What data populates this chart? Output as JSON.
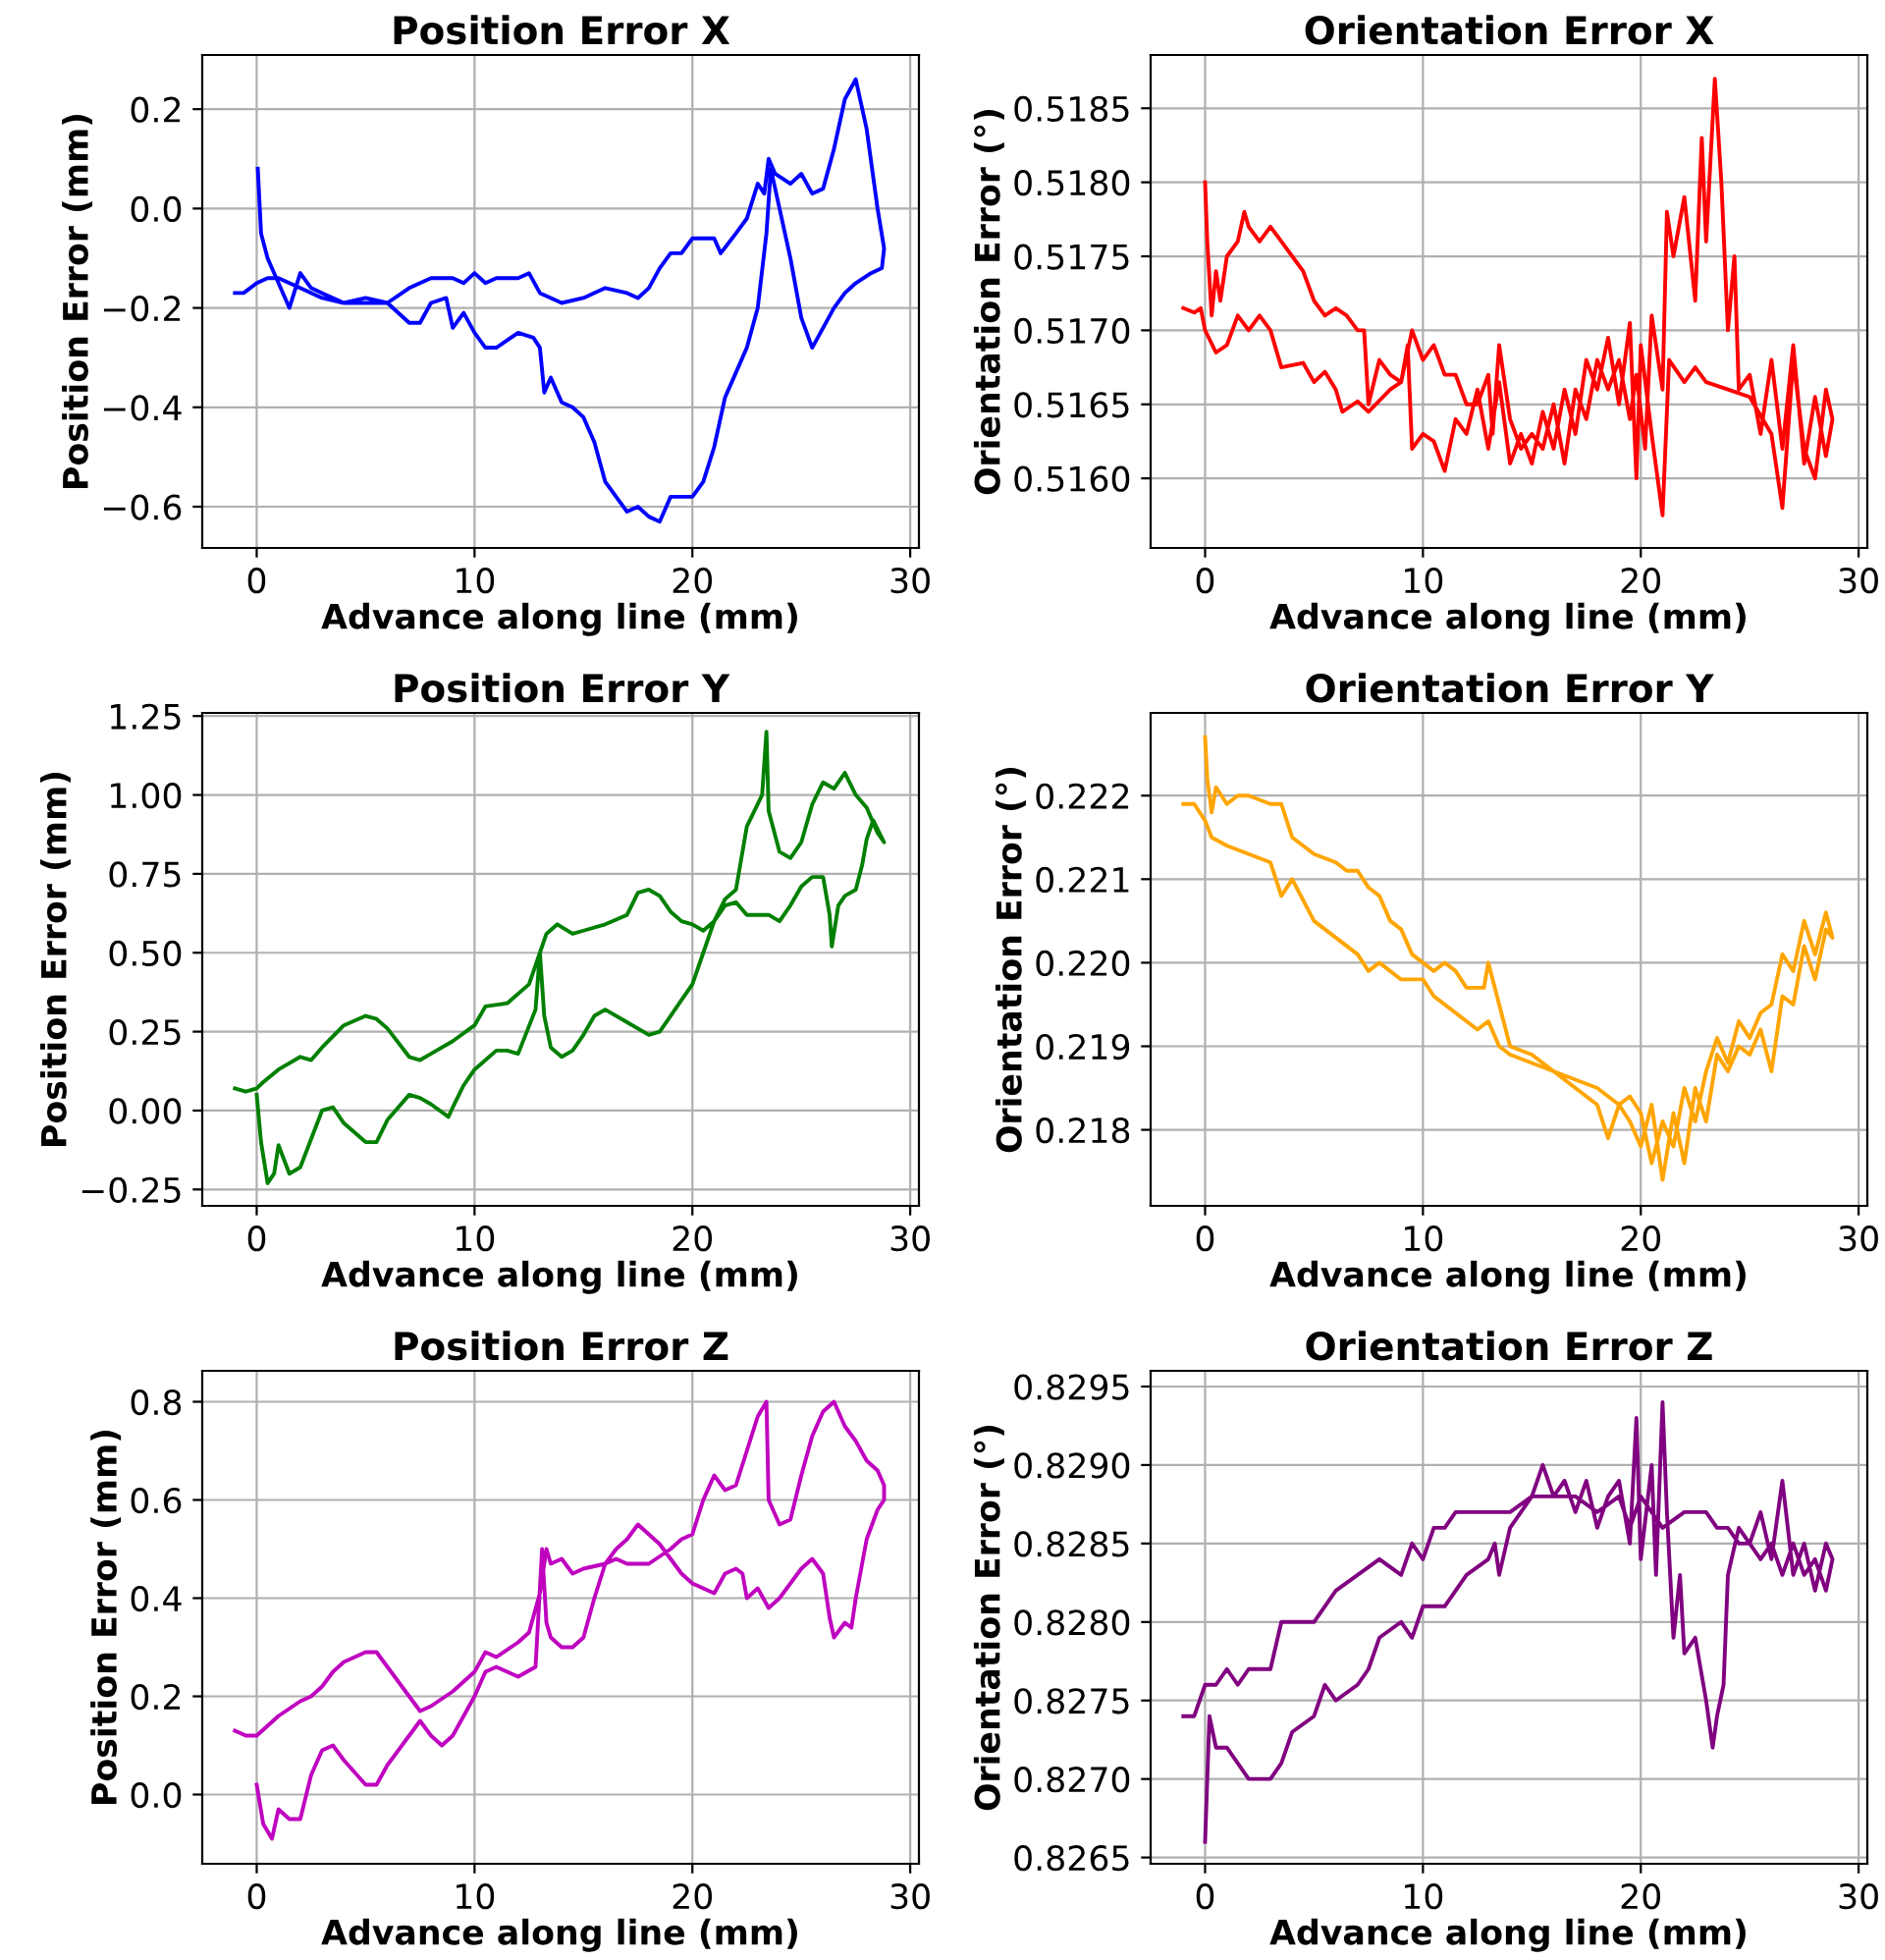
{
  "chart_data": [
    {
      "type": "line",
      "title": "Position Error X",
      "xlabel": "Advance along line (mm)",
      "ylabel": "Position Error (mm)",
      "xlim": [
        -2.5,
        30.4
      ],
      "xticks": [
        0,
        10,
        20,
        30
      ],
      "ylim": [
        -0.683,
        0.309
      ],
      "yticks": [
        {
          "value": -0.6,
          "label": "−0.6"
        },
        {
          "value": -0.4,
          "label": "−0.4"
        },
        {
          "value": -0.2,
          "label": "−0.2"
        },
        {
          "value": 0.0,
          "label": "0.0"
        },
        {
          "value": 0.2,
          "label": "0.2"
        }
      ],
      "grid": true,
      "line_style": "solid",
      "marker": "none",
      "series": [
        {
          "color": "#0000ff",
          "x": [
            -1,
            -0.6,
            0,
            0.5,
            1,
            2,
            3,
            4,
            5,
            6,
            7,
            8,
            9,
            9.5,
            10,
            10.5,
            11,
            12,
            12.5,
            13,
            13.5,
            14,
            15,
            16,
            17,
            17.5,
            18,
            18.5,
            19,
            19.5,
            20,
            21,
            21.3,
            22,
            22.5,
            23,
            23.3,
            23.5,
            23.8,
            24.5,
            25,
            25.5,
            26,
            26.5,
            27,
            27.5,
            28,
            28.5,
            28.8,
            28.7,
            28.2,
            27.5,
            27,
            26.5,
            26,
            25.5,
            25,
            24.5,
            24,
            23.6,
            23.4,
            23,
            22.5,
            22,
            21.5,
            21,
            20.5,
            20,
            19,
            18.5,
            18,
            17.5,
            17,
            16.5,
            16,
            15.5,
            15,
            14.5,
            14,
            13.5,
            13.2,
            13,
            12.7,
            12,
            11,
            10.5,
            10,
            9.5,
            9,
            8.7,
            8,
            7.5,
            7,
            6,
            5,
            4,
            3,
            2.5,
            2,
            1.5,
            1,
            0.5,
            0.2,
            0.05
          ],
          "values": [
            -0.17,
            -0.17,
            -0.15,
            -0.14,
            -0.14,
            -0.16,
            -0.18,
            -0.19,
            -0.19,
            -0.19,
            -0.16,
            -0.14,
            -0.14,
            -0.15,
            -0.13,
            -0.15,
            -0.14,
            -0.14,
            -0.13,
            -0.17,
            -0.18,
            -0.19,
            -0.18,
            -0.16,
            -0.17,
            -0.18,
            -0.16,
            -0.12,
            -0.09,
            -0.09,
            -0.06,
            -0.06,
            -0.09,
            -0.05,
            -0.02,
            0.05,
            0.03,
            0.1,
            0.07,
            0.05,
            0.07,
            0.03,
            0.04,
            0.12,
            0.22,
            0.26,
            0.16,
            0.0,
            -0.08,
            -0.12,
            -0.13,
            -0.15,
            -0.17,
            -0.2,
            -0.24,
            -0.28,
            -0.22,
            -0.1,
            0.0,
            0.08,
            -0.05,
            -0.2,
            -0.28,
            -0.33,
            -0.38,
            -0.48,
            -0.55,
            -0.58,
            -0.58,
            -0.63,
            -0.62,
            -0.6,
            -0.61,
            -0.58,
            -0.55,
            -0.47,
            -0.42,
            -0.4,
            -0.39,
            -0.34,
            -0.37,
            -0.28,
            -0.26,
            -0.25,
            -0.28,
            -0.28,
            -0.25,
            -0.21,
            -0.24,
            -0.18,
            -0.19,
            -0.23,
            -0.23,
            -0.19,
            -0.18,
            -0.19,
            -0.17,
            -0.16,
            -0.13,
            -0.2,
            -0.15,
            -0.1,
            -0.05,
            0.08
          ]
        }
      ]
    },
    {
      "type": "line",
      "title": "Orientation Error X",
      "xlabel": "Advance along line (mm)",
      "ylabel": "Orientation Error (°)",
      "xlim": [
        -2.5,
        30.4
      ],
      "xticks": [
        0,
        10,
        20,
        30
      ],
      "ylim": [
        0.51553,
        0.51886
      ],
      "yticks": [
        {
          "value": 0.516,
          "label": "0.5160"
        },
        {
          "value": 0.5165,
          "label": "0.5165"
        },
        {
          "value": 0.517,
          "label": "0.5170"
        },
        {
          "value": 0.5175,
          "label": "0.5175"
        },
        {
          "value": 0.518,
          "label": "0.5180"
        },
        {
          "value": 0.5185,
          "label": "0.5185"
        }
      ],
      "grid": true,
      "line_style": "solid",
      "marker": "none",
      "series": [
        {
          "color": "#ff0000",
          "x": [
            -1,
            -0.5,
            -0.2,
            0,
            0.5,
            1,
            1.5,
            2,
            2.5,
            3,
            3.5,
            4.5,
            5,
            5.5,
            6,
            6.3,
            7,
            7.5,
            8.5,
            9,
            9.3,
            9.5,
            10,
            10.5,
            11,
            11.5,
            12,
            12.5,
            13,
            13.5,
            14,
            14.5,
            15,
            15.5,
            16,
            16.5,
            17,
            17.5,
            18,
            18.5,
            19,
            19.5,
            19.8,
            20,
            20.5,
            21,
            21.3,
            22,
            22.5,
            23,
            24,
            25,
            26,
            26.5,
            27,
            27.5,
            28,
            28.5,
            28.8,
            28.5,
            28,
            27.5,
            27,
            26.5,
            26,
            25.5,
            25,
            24.5,
            24.3,
            24,
            23.7,
            23.4,
            23,
            22.8,
            22.5,
            22,
            21.5,
            21.2,
            21,
            20.5,
            20.2,
            19.8,
            19.5,
            19,
            18.5,
            18,
            17.5,
            17,
            16.5,
            16,
            15.5,
            15,
            14.5,
            14,
            13.5,
            13.2,
            13,
            12.5,
            12,
            11.5,
            11,
            10.5,
            10,
            9.5,
            9,
            8.5,
            8,
            7.5,
            7.3,
            7,
            6.5,
            6,
            5.5,
            5,
            4.5,
            4,
            3.5,
            3,
            2.5,
            2,
            1.8,
            1.5,
            1,
            0.7,
            0.5,
            0.3,
            0.1,
            0
          ],
          "values": [
            0.51715,
            0.51712,
            0.51715,
            0.517,
            0.51685,
            0.5169,
            0.5171,
            0.517,
            0.5171,
            0.517,
            0.51675,
            0.51678,
            0.51665,
            0.51672,
            0.5166,
            0.51645,
            0.51652,
            0.51645,
            0.5166,
            0.51665,
            0.5169,
            0.5162,
            0.5163,
            0.51625,
            0.51605,
            0.5164,
            0.5163,
            0.5166,
            0.5162,
            0.51665,
            0.5161,
            0.5163,
            0.5161,
            0.51645,
            0.5162,
            0.5166,
            0.5163,
            0.5168,
            0.5166,
            0.51695,
            0.5165,
            0.51705,
            0.516,
            0.5169,
            0.5163,
            0.51575,
            0.5168,
            0.51665,
            0.51675,
            0.51665,
            0.5166,
            0.51655,
            0.5163,
            0.5158,
            0.5168,
            0.5162,
            0.516,
            0.5166,
            0.5164,
            0.51615,
            0.51655,
            0.5161,
            0.5169,
            0.5162,
            0.5168,
            0.5163,
            0.5167,
            0.5166,
            0.5175,
            0.517,
            0.518,
            0.5187,
            0.5176,
            0.5183,
            0.5172,
            0.5179,
            0.5175,
            0.5178,
            0.5166,
            0.5171,
            0.5162,
            0.5167,
            0.5164,
            0.5168,
            0.5166,
            0.5168,
            0.5164,
            0.5166,
            0.5161,
            0.5165,
            0.5162,
            0.5163,
            0.5162,
            0.5164,
            0.5169,
            0.5163,
            0.5167,
            0.5165,
            0.5165,
            0.5167,
            0.5167,
            0.5169,
            0.5168,
            0.517,
            0.51665,
            0.5167,
            0.5168,
            0.5165,
            0.517,
            0.517,
            0.5171,
            0.51715,
            0.5171,
            0.5172,
            0.5174,
            0.5175,
            0.5176,
            0.5177,
            0.5176,
            0.5177,
            0.5178,
            0.5176,
            0.5175,
            0.5172,
            0.5174,
            0.5171,
            0.5176,
            0.518
          ]
        }
      ]
    },
    {
      "type": "line",
      "title": "Position Error Y",
      "xlabel": "Advance along line (mm)",
      "ylabel": "Position Error (mm)",
      "xlim": [
        -2.5,
        30.4
      ],
      "xticks": [
        0,
        10,
        20,
        30
      ],
      "ylim": [
        -0.302,
        1.26
      ],
      "yticks": [
        {
          "value": -0.25,
          "label": "−0.25"
        },
        {
          "value": 0.0,
          "label": "0.00"
        },
        {
          "value": 0.25,
          "label": "0.25"
        },
        {
          "value": 0.5,
          "label": "0.50"
        },
        {
          "value": 0.75,
          "label": "0.75"
        },
        {
          "value": 1.0,
          "label": "1.00"
        },
        {
          "value": 1.25,
          "label": "1.25"
        }
      ],
      "grid": true,
      "line_style": "solid",
      "marker": "none",
      "series": [
        {
          "color": "#008000",
          "x": [
            -1,
            -0.5,
            0,
            0.3,
            1,
            2,
            2.5,
            3,
            4,
            5,
            5.5,
            6,
            7,
            7.5,
            8,
            9,
            10,
            10.5,
            11.5,
            12.5,
            13,
            13.3,
            13.8,
            14.5,
            15,
            16,
            17,
            17.5,
            18,
            18.5,
            19,
            19.5,
            20,
            20.5,
            21,
            21.5,
            22,
            22.5,
            23,
            23.5,
            24,
            24.5,
            25,
            25.5,
            26,
            26.3,
            26.4,
            26.7,
            27,
            27.5,
            27.8,
            28,
            28.3,
            28.8,
            28.5,
            28,
            27.5,
            27,
            26.5,
            26,
            25.5,
            25,
            24.5,
            24,
            23.5,
            23.4,
            23.2,
            22.5,
            22,
            21.5,
            21,
            20.5,
            20,
            19.5,
            19,
            18.5,
            18,
            17,
            16,
            15.5,
            15,
            14.5,
            14,
            13.5,
            13.2,
            13,
            12.8,
            12,
            11.5,
            11,
            10,
            9.5,
            9,
            8.8,
            8,
            7.5,
            7,
            6,
            5.5,
            5,
            4,
            3.5,
            3,
            2,
            1.5,
            1,
            0.8,
            0.5,
            0.2,
            0
          ],
          "values": [
            0.07,
            0.06,
            0.07,
            0.09,
            0.13,
            0.17,
            0.16,
            0.2,
            0.27,
            0.3,
            0.29,
            0.26,
            0.17,
            0.16,
            0.18,
            0.22,
            0.27,
            0.33,
            0.34,
            0.4,
            0.5,
            0.56,
            0.59,
            0.56,
            0.57,
            0.59,
            0.62,
            0.69,
            0.7,
            0.68,
            0.63,
            0.6,
            0.59,
            0.57,
            0.6,
            0.65,
            0.66,
            0.62,
            0.62,
            0.62,
            0.6,
            0.65,
            0.71,
            0.74,
            0.74,
            0.62,
            0.52,
            0.65,
            0.68,
            0.7,
            0.78,
            0.86,
            0.92,
            0.85,
            0.88,
            0.96,
            1.0,
            1.07,
            1.02,
            1.04,
            0.97,
            0.85,
            0.8,
            0.82,
            0.95,
            1.2,
            1.0,
            0.9,
            0.7,
            0.67,
            0.6,
            0.5,
            0.4,
            0.35,
            0.3,
            0.25,
            0.24,
            0.28,
            0.32,
            0.3,
            0.24,
            0.19,
            0.17,
            0.2,
            0.3,
            0.5,
            0.32,
            0.18,
            0.19,
            0.19,
            0.13,
            0.08,
            0.01,
            -0.02,
            0.02,
            0.04,
            0.05,
            -0.03,
            -0.1,
            -0.1,
            -0.04,
            0.01,
            0.0,
            -0.18,
            -0.2,
            -0.11,
            -0.2,
            -0.23,
            -0.1,
            0.05
          ]
        }
      ]
    },
    {
      "type": "line",
      "title": "Orientation Error Y",
      "xlabel": "Advance along line (mm)",
      "ylabel": "Orientation Error (°)",
      "xlim": [
        -2.5,
        30.4
      ],
      "xticks": [
        0,
        10,
        20,
        30
      ],
      "ylim": [
        0.21709,
        0.22299
      ],
      "yticks": [
        {
          "value": 0.218,
          "label": "0.218"
        },
        {
          "value": 0.219,
          "label": "0.219"
        },
        {
          "value": 0.22,
          "label": "0.220"
        },
        {
          "value": 0.221,
          "label": "0.221"
        },
        {
          "value": 0.222,
          "label": "0.222"
        }
      ],
      "grid": true,
      "line_style": "solid",
      "marker": "none",
      "series": [
        {
          "color": "#ffa500",
          "x": [
            -1,
            -0.5,
            0,
            0.3,
            1,
            2,
            3,
            3.5,
            4,
            5,
            6,
            7,
            7.5,
            8,
            9,
            10,
            10.5,
            11.5,
            12,
            12.5,
            13,
            13.5,
            14,
            15,
            16,
            17,
            18,
            18.5,
            19,
            19.5,
            20,
            20.5,
            21,
            21.5,
            22,
            22.5,
            23,
            23.5,
            24,
            24.5,
            25,
            25.5,
            26,
            26.5,
            27,
            27.5,
            28,
            28.5,
            28.8,
            28.5,
            28,
            27.5,
            27,
            26.5,
            26,
            25.5,
            25,
            24.5,
            24,
            23.5,
            23,
            22.5,
            22,
            21.5,
            21,
            20.5,
            20,
            19.5,
            19,
            18,
            17,
            16,
            15,
            14,
            13.5,
            13,
            12.8,
            12,
            11.5,
            11,
            10.5,
            10,
            9.5,
            9,
            8.5,
            8,
            7.5,
            7,
            6.5,
            6,
            5,
            4.5,
            4,
            3.5,
            3,
            2,
            1.5,
            1,
            0.5,
            0.3,
            0.1,
            0
          ],
          "values": [
            0.2219,
            0.2219,
            0.2217,
            0.2215,
            0.2214,
            0.2213,
            0.2212,
            0.2208,
            0.221,
            0.2205,
            0.2203,
            0.2201,
            0.2199,
            0.22,
            0.2198,
            0.2198,
            0.2196,
            0.2194,
            0.2193,
            0.2192,
            0.2193,
            0.219,
            0.2189,
            0.2188,
            0.2187,
            0.2185,
            0.2183,
            0.2179,
            0.2183,
            0.2181,
            0.2178,
            0.2183,
            0.2174,
            0.2182,
            0.2176,
            0.2185,
            0.2181,
            0.2189,
            0.2187,
            0.219,
            0.2189,
            0.2192,
            0.2187,
            0.2196,
            0.2195,
            0.2202,
            0.2198,
            0.2204,
            0.2203,
            0.2206,
            0.2201,
            0.2205,
            0.2199,
            0.2201,
            0.2195,
            0.2194,
            0.2191,
            0.2193,
            0.2188,
            0.2191,
            0.2187,
            0.2181,
            0.2185,
            0.2178,
            0.2181,
            0.2176,
            0.2182,
            0.2184,
            0.2183,
            0.2185,
            0.2186,
            0.2187,
            0.2189,
            0.219,
            0.2195,
            0.22,
            0.2197,
            0.2197,
            0.2199,
            0.22,
            0.2199,
            0.22,
            0.2201,
            0.2204,
            0.2205,
            0.2208,
            0.2209,
            0.2211,
            0.2211,
            0.2212,
            0.2213,
            0.2214,
            0.2215,
            0.2219,
            0.2219,
            0.222,
            0.222,
            0.2219,
            0.2221,
            0.2218,
            0.2222,
            0.2227
          ]
        }
      ]
    },
    {
      "type": "line",
      "title": "Position Error Z",
      "xlabel": "Advance along line (mm)",
      "ylabel": "Position Error (mm)",
      "xlim": [
        -2.5,
        30.4
      ],
      "xticks": [
        0,
        10,
        20,
        30
      ],
      "ylim": [
        -0.141,
        0.863
      ],
      "yticks": [
        {
          "value": 0.0,
          "label": "0.0"
        },
        {
          "value": 0.2,
          "label": "0.2"
        },
        {
          "value": 0.4,
          "label": "0.4"
        },
        {
          "value": 0.6,
          "label": "0.6"
        },
        {
          "value": 0.8,
          "label": "0.8"
        }
      ],
      "grid": true,
      "line_style": "solid",
      "marker": "none",
      "series": [
        {
          "color": "#bf00bf",
          "x": [
            -1,
            -0.5,
            0,
            0.5,
            1,
            2,
            2.5,
            3,
            3.5,
            4,
            5,
            5.5,
            6,
            7,
            7.5,
            8,
            9,
            10,
            10.5,
            11,
            12,
            12.5,
            13,
            13.3,
            13.5,
            14,
            14.5,
            15,
            16,
            16.5,
            17,
            17.5,
            18,
            18.5,
            19,
            19.5,
            20,
            20.5,
            21,
            21.5,
            22,
            22.3,
            22.5,
            23,
            23.5,
            24,
            24.5,
            25,
            25.5,
            26,
            26.3,
            26.5,
            27,
            27.3,
            27.5,
            28,
            28.5,
            28.8,
            28.8,
            28.5,
            28,
            27.5,
            27,
            26.5,
            26,
            25.5,
            25,
            24.5,
            24,
            23.5,
            23.4,
            23,
            22.5,
            22,
            21.5,
            21,
            20.5,
            20,
            19.5,
            19,
            18,
            17,
            16.5,
            16,
            15.5,
            15,
            14.5,
            14,
            13.5,
            13.3,
            13.1,
            12.8,
            12,
            11,
            10.5,
            10,
            9.5,
            9,
            8.5,
            8,
            7.5,
            7,
            6,
            5.5,
            5,
            4,
            3.5,
            3,
            2.5,
            2,
            1.5,
            1,
            0.7,
            0.3,
            0
          ],
          "values": [
            0.13,
            0.12,
            0.12,
            0.14,
            0.16,
            0.19,
            0.2,
            0.22,
            0.25,
            0.27,
            0.29,
            0.29,
            0.26,
            0.2,
            0.17,
            0.18,
            0.21,
            0.25,
            0.29,
            0.28,
            0.31,
            0.33,
            0.41,
            0.5,
            0.47,
            0.48,
            0.45,
            0.46,
            0.47,
            0.5,
            0.52,
            0.55,
            0.53,
            0.51,
            0.48,
            0.45,
            0.43,
            0.42,
            0.41,
            0.45,
            0.46,
            0.45,
            0.4,
            0.42,
            0.38,
            0.4,
            0.43,
            0.46,
            0.48,
            0.45,
            0.36,
            0.32,
            0.35,
            0.34,
            0.4,
            0.52,
            0.58,
            0.6,
            0.63,
            0.66,
            0.68,
            0.72,
            0.75,
            0.8,
            0.78,
            0.73,
            0.65,
            0.56,
            0.55,
            0.6,
            0.8,
            0.77,
            0.7,
            0.63,
            0.62,
            0.65,
            0.6,
            0.53,
            0.52,
            0.5,
            0.47,
            0.47,
            0.48,
            0.47,
            0.4,
            0.32,
            0.3,
            0.3,
            0.32,
            0.35,
            0.5,
            0.26,
            0.24,
            0.26,
            0.25,
            0.2,
            0.16,
            0.12,
            0.1,
            0.12,
            0.15,
            0.12,
            0.06,
            0.02,
            0.02,
            0.07,
            0.1,
            0.09,
            0.04,
            -0.05,
            -0.05,
            -0.03,
            -0.09,
            -0.06,
            0.02
          ]
        }
      ]
    },
    {
      "type": "line",
      "title": "Orientation Error Z",
      "xlabel": "Advance along line (mm)",
      "ylabel": "Orientation Error (°)",
      "xlim": [
        -2.5,
        30.4
      ],
      "xticks": [
        0,
        10,
        20,
        30
      ],
      "ylim": [
        0.82646,
        0.8296
      ],
      "yticks": [
        {
          "value": 0.8265,
          "label": "0.8265"
        },
        {
          "value": 0.827,
          "label": "0.8270"
        },
        {
          "value": 0.8275,
          "label": "0.8275"
        },
        {
          "value": 0.828,
          "label": "0.8280"
        },
        {
          "value": 0.8285,
          "label": "0.8285"
        },
        {
          "value": 0.829,
          "label": "0.8290"
        },
        {
          "value": 0.8295,
          "label": "0.8295"
        }
      ],
      "grid": true,
      "line_style": "solid",
      "marker": "none",
      "series": [
        {
          "color": "#800080",
          "x": [
            -1,
            -0.5,
            0,
            0.5,
            1,
            1.5,
            2,
            3,
            3.5,
            4,
            5,
            6,
            7,
            8,
            9,
            9.5,
            10,
            10.5,
            11,
            11.5,
            12,
            13,
            14,
            15,
            16,
            17,
            18,
            19,
            19.5,
            20,
            20.5,
            21,
            22,
            23,
            23.5,
            24,
            24.5,
            25,
            25.5,
            26,
            26.5,
            27,
            27.5,
            28,
            28.5,
            28.8,
            28.5,
            28,
            27.5,
            27,
            26.5,
            26,
            25.5,
            25,
            24.5,
            24,
            23.8,
            23.5,
            23.3,
            23,
            22.5,
            22,
            21.8,
            21.5,
            21.2,
            21,
            20.7,
            20.5,
            20,
            19.8,
            19.5,
            19,
            18.5,
            18,
            17.5,
            17,
            16.5,
            16,
            15.5,
            15,
            14.5,
            14,
            13.5,
            13.3,
            13,
            12,
            11.5,
            11,
            10.5,
            10,
            9.5,
            9,
            8,
            7.5,
            7,
            6,
            5.5,
            5,
            4,
            3.5,
            3,
            2,
            1.5,
            1,
            0.5,
            0.2,
            0
          ],
          "values": [
            0.8274,
            0.8274,
            0.8276,
            0.8276,
            0.8277,
            0.8276,
            0.8277,
            0.8277,
            0.828,
            0.828,
            0.828,
            0.8282,
            0.8283,
            0.8284,
            0.8283,
            0.8285,
            0.8284,
            0.8286,
            0.8286,
            0.8287,
            0.8287,
            0.8287,
            0.8287,
            0.8288,
            0.8288,
            0.8288,
            0.8287,
            0.8288,
            0.8286,
            0.8288,
            0.8287,
            0.8286,
            0.8287,
            0.8287,
            0.8286,
            0.8286,
            0.8285,
            0.8285,
            0.8284,
            0.8285,
            0.8283,
            0.8285,
            0.8283,
            0.8284,
            0.8282,
            0.8284,
            0.8285,
            0.8282,
            0.8285,
            0.8283,
            0.8289,
            0.8284,
            0.8287,
            0.8285,
            0.8286,
            0.8283,
            0.8276,
            0.8274,
            0.8272,
            0.8275,
            0.8279,
            0.8278,
            0.8283,
            0.8279,
            0.8287,
            0.8294,
            0.8283,
            0.829,
            0.8284,
            0.8293,
            0.8285,
            0.8289,
            0.8288,
            0.8286,
            0.8289,
            0.8287,
            0.8289,
            0.8288,
            0.829,
            0.8288,
            0.8287,
            0.8286,
            0.8283,
            0.8285,
            0.8284,
            0.8283,
            0.8282,
            0.8281,
            0.8281,
            0.8281,
            0.8279,
            0.828,
            0.8279,
            0.8277,
            0.8276,
            0.8275,
            0.8276,
            0.8274,
            0.8273,
            0.8271,
            0.827,
            0.827,
            0.8271,
            0.8272,
            0.8272,
            0.8274,
            0.8266
          ]
        }
      ]
    }
  ]
}
